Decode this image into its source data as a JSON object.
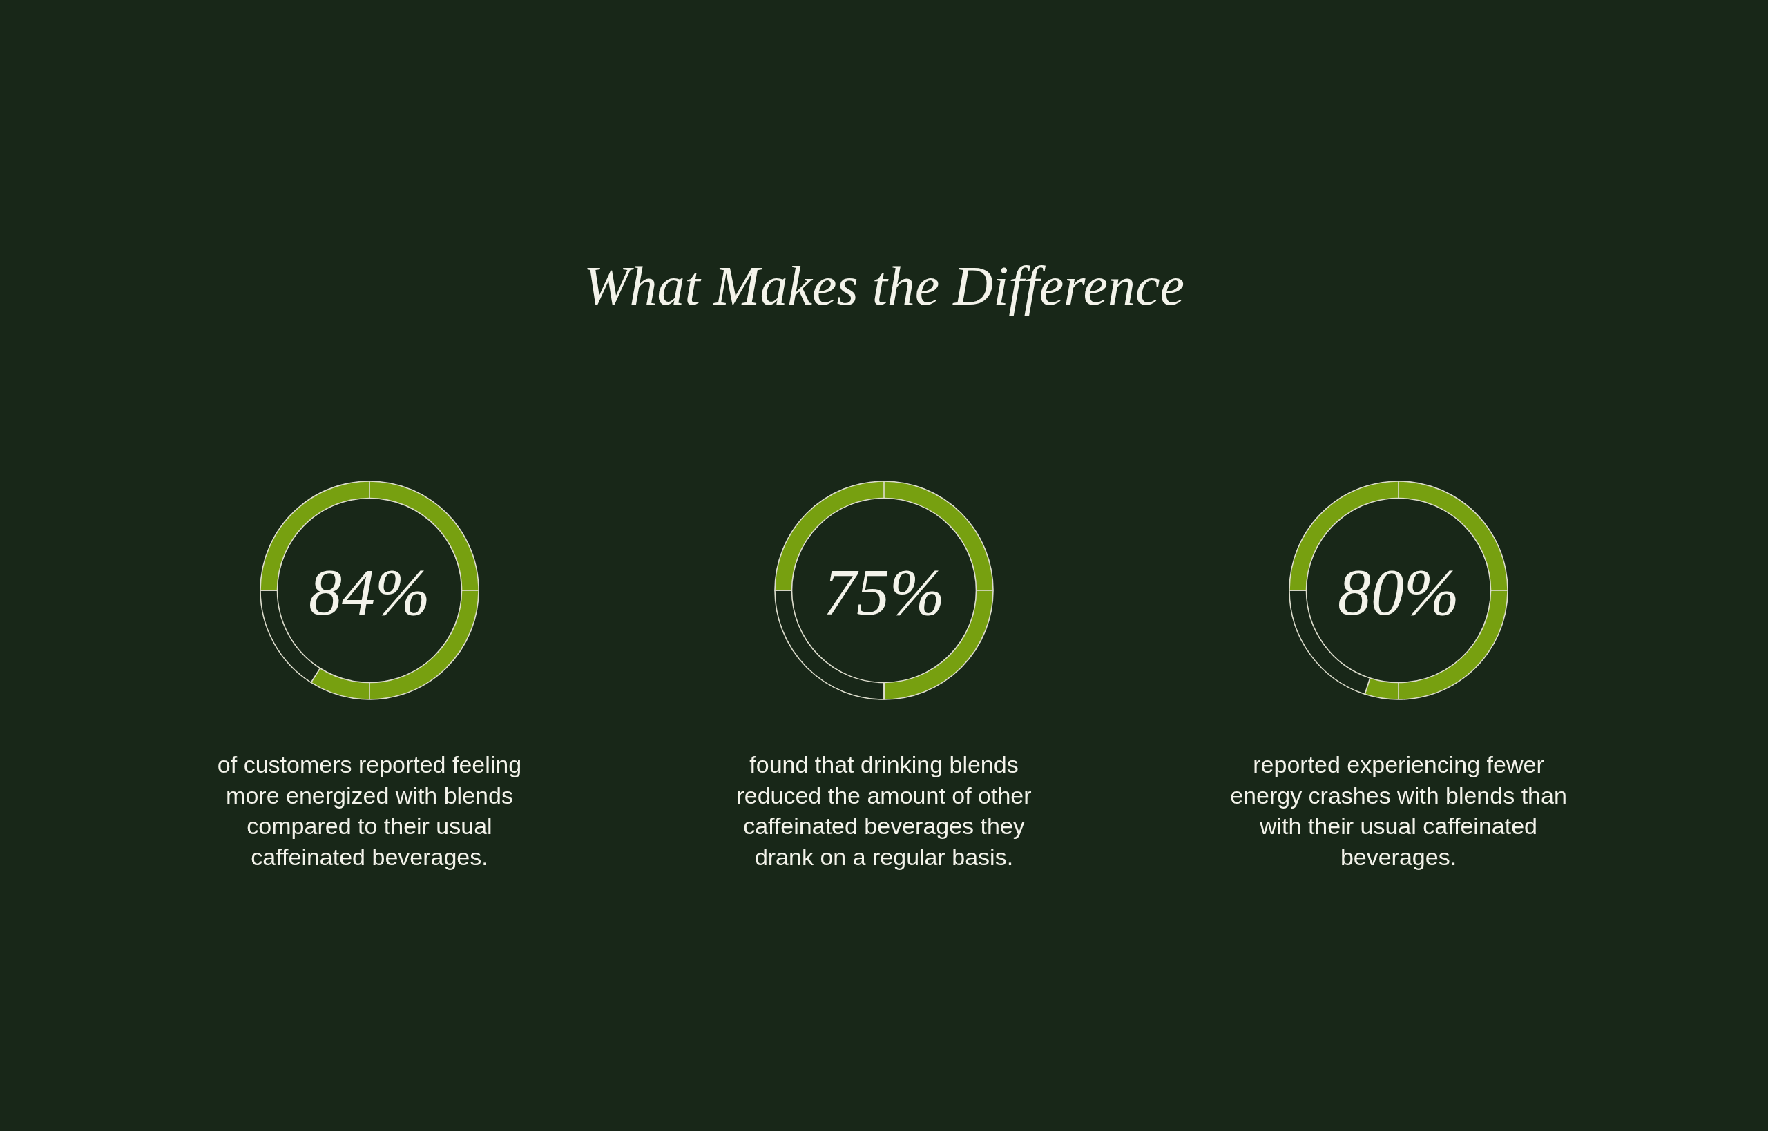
{
  "chart_data": [
    {
      "type": "other",
      "title": "What Makes the Difference"
    },
    {
      "type": "donut",
      "categories": [
        null,
        null
      ],
      "values": [
        84,
        16
      ],
      "colors": [
        "#77a010",
        "#182718"
      ],
      "value_labels": [
        "84%",
        null
      ],
      "annotations": [
        "of customers reported feeling more energized with blends compared to their usual caffeinated beverages."
      ]
    },
    {
      "type": "donut",
      "categories": [
        null,
        null
      ],
      "values": [
        75,
        25
      ],
      "colors": [
        "#77a010",
        "#182718"
      ],
      "value_labels": [
        "75%",
        null
      ],
      "annotations": [
        "found that drinking blends reduced the amount of other caffeinated beverages they drank on a regular basis."
      ]
    },
    {
      "type": "donut",
      "categories": [
        null,
        null
      ],
      "values": [
        80,
        20
      ],
      "colors": [
        "#77a010",
        "#182718"
      ],
      "value_labels": [
        "80%",
        null
      ],
      "annotations": [
        "reported experiencing fewer energy crashes with blends than with their usual caffeinated beverages."
      ]
    }
  ]
}
